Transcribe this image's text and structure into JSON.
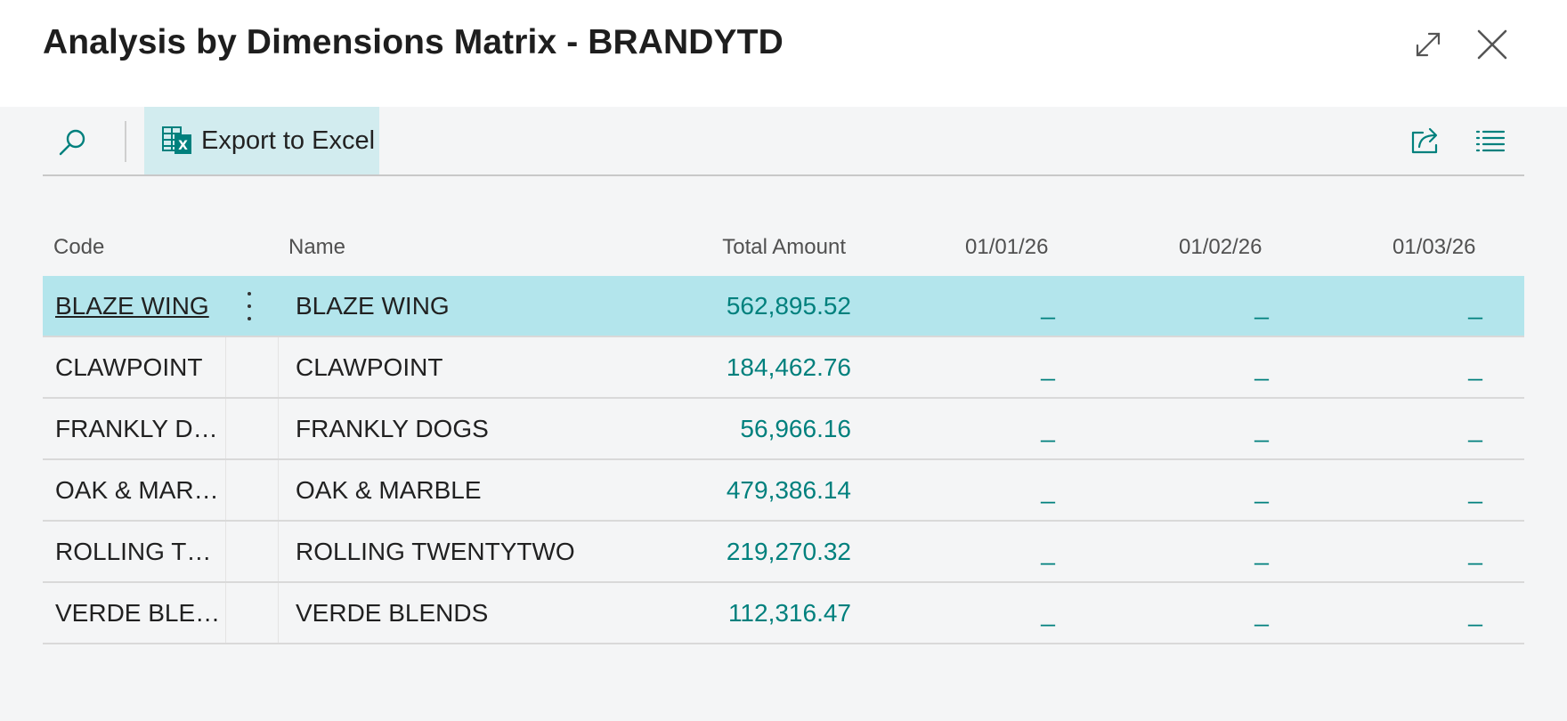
{
  "window": {
    "title": "Analysis by Dimensions Matrix - BRANDYTD"
  },
  "toolbar": {
    "export_label": "Export to Excel"
  },
  "columns": {
    "code": "Code",
    "name": "Name",
    "total": "Total Amount",
    "period1": "01/01/26",
    "period2": "01/02/26",
    "period3": "01/03/26"
  },
  "rows": [
    {
      "code": "BLAZE WING",
      "name": "BLAZE WING",
      "total": "562,895.52",
      "p1": "_",
      "p2": "_",
      "p3": "_"
    },
    {
      "code": "CLAWPOINT",
      "name": "CLAWPOINT",
      "total": "184,462.76",
      "p1": "_",
      "p2": "_",
      "p3": "_"
    },
    {
      "code": "FRANKLY DO...",
      "name": "FRANKLY DOGS",
      "total": "56,966.16",
      "p1": "_",
      "p2": "_",
      "p3": "_"
    },
    {
      "code": "OAK & MARB...",
      "name": "OAK & MARBLE",
      "total": "479,386.14",
      "p1": "_",
      "p2": "_",
      "p3": "_"
    },
    {
      "code": "ROLLING TW...",
      "name": "ROLLING TWENTYTWO",
      "total": "219,270.32",
      "p1": "_",
      "p2": "_",
      "p3": "_"
    },
    {
      "code": "VERDE BLENDS",
      "name": "VERDE BLENDS",
      "total": "112,316.47",
      "p1": "_",
      "p2": "_",
      "p3": "_"
    }
  ],
  "colors": {
    "accent": "#00807d",
    "selected_row": "#b3e5ec",
    "export_button_bg": "#d2ecef"
  },
  "icons": {
    "header": [
      "expand-icon",
      "close-icon"
    ],
    "toolbar": [
      "search-icon",
      "excel-icon",
      "share-icon",
      "list-view-icon"
    ],
    "row": [
      "more-options-icon"
    ]
  }
}
